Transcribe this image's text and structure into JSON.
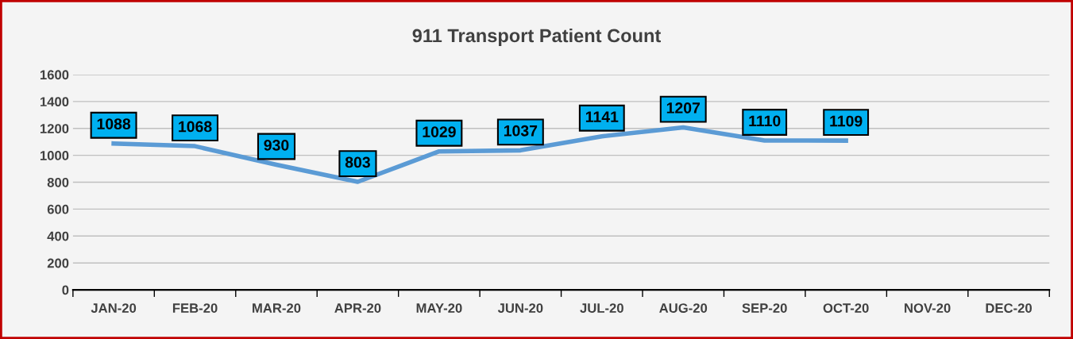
{
  "chart_data": {
    "type": "line",
    "title": "911 Transport Patient Count",
    "categories": [
      "JAN-20",
      "FEB-20",
      "MAR-20",
      "APR-20",
      "MAY-20",
      "JUN-20",
      "JUL-20",
      "AUG-20",
      "SEP-20",
      "OCT-20",
      "NOV-20",
      "DEC-20"
    ],
    "series": [
      {
        "color": "#5b9bd5",
        "values": [
          1088,
          1068,
          930,
          803,
          1029,
          1037,
          1141,
          1207,
          1110,
          1109,
          null,
          null
        ]
      }
    ],
    "ylim": [
      0,
      1600
    ],
    "yticks": [
      0,
      200,
      400,
      600,
      800,
      1000,
      1200,
      1400,
      1600
    ],
    "grid": "y",
    "data_labels": true,
    "line_style": "solid",
    "legend": false
  }
}
